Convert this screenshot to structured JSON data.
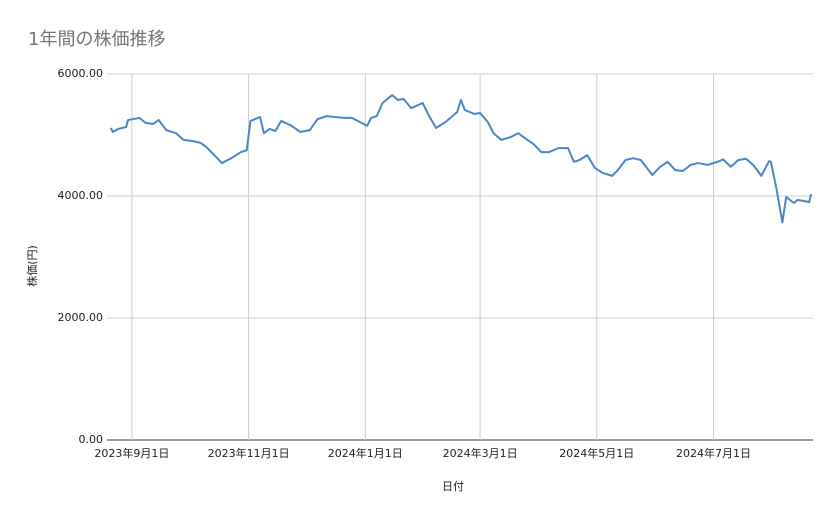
{
  "chart_data": {
    "type": "line",
    "title": "1年間の株価推移",
    "x_label": "日付",
    "y_label": "株価(円)",
    "x": [
      "2023-08-21",
      "2023-08-22",
      "2023-08-25",
      "2023-08-29",
      "2023-08-30",
      "2023-09-05",
      "2023-09-08",
      "2023-09-12",
      "2023-09-15",
      "2023-09-19",
      "2023-09-24",
      "2023-09-28",
      "2023-10-03",
      "2023-10-07",
      "2023-10-10",
      "2023-10-15",
      "2023-10-18",
      "2023-10-23",
      "2023-10-28",
      "2023-10-31",
      "2023-11-02",
      "2023-11-07",
      "2023-11-09",
      "2023-11-12",
      "2023-11-15",
      "2023-11-18",
      "2023-11-23",
      "2023-11-28",
      "2023-12-03",
      "2023-12-07",
      "2023-12-12",
      "2023-12-16",
      "2023-12-21",
      "2023-12-25",
      "2023-12-29",
      "2024-01-02",
      "2024-01-04",
      "2024-01-07",
      "2024-01-10",
      "2024-01-15",
      "2024-01-18",
      "2024-01-21",
      "2024-01-25",
      "2024-01-31",
      "2024-02-03",
      "2024-02-07",
      "2024-02-12",
      "2024-02-15",
      "2024-02-18",
      "2024-02-20",
      "2024-02-22",
      "2024-02-27",
      "2024-03-01",
      "2024-03-05",
      "2024-03-08",
      "2024-03-12",
      "2024-03-17",
      "2024-03-21",
      "2024-03-25",
      "2024-03-29",
      "2024-04-02",
      "2024-04-06",
      "2024-04-11",
      "2024-04-16",
      "2024-04-19",
      "2024-04-22",
      "2024-04-26",
      "2024-04-30",
      "2024-05-04",
      "2024-05-09",
      "2024-05-12",
      "2024-05-16",
      "2024-05-20",
      "2024-05-24",
      "2024-05-30",
      "2024-06-03",
      "2024-06-07",
      "2024-06-11",
      "2024-06-15",
      "2024-06-19",
      "2024-06-23",
      "2024-06-28",
      "2024-07-03",
      "2024-07-06",
      "2024-07-10",
      "2024-07-14",
      "2024-07-18",
      "2024-07-22",
      "2024-07-26",
      "2024-07-30",
      "2024-07-31",
      "2024-08-03",
      "2024-08-06",
      "2024-08-08",
      "2024-08-12",
      "2024-08-14",
      "2024-08-17",
      "2024-08-20",
      "2024-08-21"
    ],
    "series": [
      {
        "name": "株価",
        "color": "#4a86c8",
        "values": [
          5115,
          5050,
          5100,
          5130,
          5245,
          5280,
          5200,
          5180,
          5245,
          5080,
          5030,
          4920,
          4900,
          4870,
          4800,
          4640,
          4540,
          4620,
          4720,
          4750,
          5230,
          5295,
          5030,
          5100,
          5065,
          5230,
          5160,
          5050,
          5080,
          5260,
          5310,
          5295,
          5280,
          5280,
          5215,
          5150,
          5280,
          5310,
          5525,
          5655,
          5575,
          5590,
          5440,
          5525,
          5330,
          5115,
          5215,
          5295,
          5375,
          5575,
          5410,
          5345,
          5360,
          5215,
          5030,
          4920,
          4965,
          5030,
          4935,
          4850,
          4720,
          4720,
          4785,
          4785,
          4560,
          4590,
          4670,
          4460,
          4380,
          4330,
          4425,
          4590,
          4620,
          4590,
          4345,
          4475,
          4560,
          4425,
          4410,
          4510,
          4540,
          4510,
          4560,
          4600,
          4480,
          4590,
          4610,
          4500,
          4330,
          4570,
          4560,
          4100,
          3570,
          3985,
          3885,
          3935,
          3920,
          3900,
          4030
        ]
      }
    ],
    "xlim": [
      "2023-08-19",
      "2024-08-22"
    ],
    "xticks": [
      {
        "value": "2023-09-01",
        "label": "2023年9月1日"
      },
      {
        "value": "2023-11-01",
        "label": "2023年11月1日"
      },
      {
        "value": "2024-01-01",
        "label": "2024年1月1日"
      },
      {
        "value": "2024-03-01",
        "label": "2024年3月1日"
      },
      {
        "value": "2024-05-01",
        "label": "2024年5月1日"
      },
      {
        "value": "2024-07-01",
        "label": "2024年7月1日"
      }
    ],
    "ylim": [
      0,
      6000
    ],
    "yticks": [
      {
        "value": 0,
        "label": "0.00"
      },
      {
        "value": 2000,
        "label": "2000.00"
      },
      {
        "value": 4000,
        "label": "4000.00"
      },
      {
        "value": 6000,
        "label": "6000.00"
      }
    ],
    "grid": true
  }
}
